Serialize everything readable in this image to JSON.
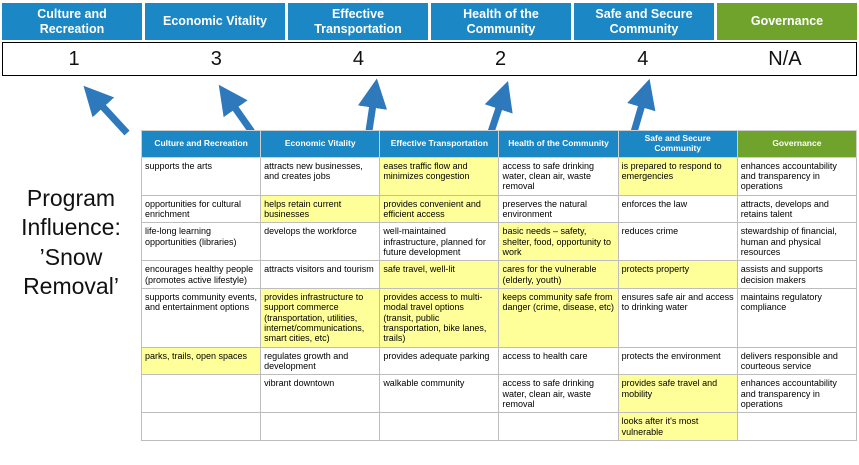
{
  "program_label": "Program Influence: ’Snow Removal’",
  "colors": {
    "header_blue": "#1b87c5",
    "header_green": "#6fa32b",
    "highlight_yellow": "#ffff99",
    "arrow_blue": "#2e79bb"
  },
  "categories": [
    {
      "label": "Culture and Recreation",
      "score": "1",
      "theme": "blue"
    },
    {
      "label": "Economic Vitality",
      "score": "3",
      "theme": "blue"
    },
    {
      "label": "Effective Transportation",
      "score": "4",
      "theme": "blue"
    },
    {
      "label": "Health of the Community",
      "score": "2",
      "theme": "blue"
    },
    {
      "label": "Safe and Secure Community",
      "score": "4",
      "theme": "blue"
    },
    {
      "label": "Governance",
      "score": "N/A",
      "theme": "green"
    }
  ],
  "table": {
    "rows": [
      [
        {
          "text": "supports the arts",
          "hl": false
        },
        {
          "text": "attracts new businesses, and creates jobs",
          "hl": false
        },
        {
          "text": "eases traffic flow and minimizes congestion",
          "hl": true
        },
        {
          "text": "access to safe drinking water, clean air, waste removal",
          "hl": false
        },
        {
          "text": "is prepared to respond to emergencies",
          "hl": true
        },
        {
          "text": "enhances accountability and transparency in operations",
          "hl": false
        }
      ],
      [
        {
          "text": "opportunities for cultural enrichment",
          "hl": false
        },
        {
          "text": "helps retain current businesses",
          "hl": true
        },
        {
          "text": "provides convenient and efficient access",
          "hl": true
        },
        {
          "text": "preserves the natural environment",
          "hl": false
        },
        {
          "text": "enforces the law",
          "hl": false
        },
        {
          "text": "attracts, develops and retains talent",
          "hl": false
        }
      ],
      [
        {
          "text": "life-long learning opportunities (libraries)",
          "hl": false
        },
        {
          "text": "develops the workforce",
          "hl": false
        },
        {
          "text": "well-maintained infrastructure, planned for future development",
          "hl": false
        },
        {
          "text": "basic needs – safety, shelter, food, opportunity to work",
          "hl": true
        },
        {
          "text": "reduces crime",
          "hl": false
        },
        {
          "text": "stewardship of financial, human and physical resources",
          "hl": false
        }
      ],
      [
        {
          "text": "encourages healthy people (promotes active lifestyle)",
          "hl": false
        },
        {
          "text": "attracts visitors and tourism",
          "hl": false
        },
        {
          "text": "safe travel, well-lit",
          "hl": true
        },
        {
          "text": "cares for the vulnerable (elderly, youth)",
          "hl": true
        },
        {
          "text": "protects property",
          "hl": true
        },
        {
          "text": "assists and supports decision makers",
          "hl": false
        }
      ],
      [
        {
          "text": "supports community events, and entertainment options",
          "hl": false
        },
        {
          "text": "provides infrastructure to support commerce (transportation, utilities, internet/communications, smart cities, etc)",
          "hl": true
        },
        {
          "text": "provides access to multi-modal travel options (transit, public transportation, bike lanes, trails)",
          "hl": true
        },
        {
          "text": "keeps community safe from danger (crime, disease, etc)",
          "hl": true
        },
        {
          "text": "ensures safe air and access to drinking water",
          "hl": false
        },
        {
          "text": "maintains regulatory compliance",
          "hl": false
        }
      ],
      [
        {
          "text": "parks, trails, open spaces",
          "hl": true
        },
        {
          "text": "regulates growth and development",
          "hl": false
        },
        {
          "text": "provides adequate parking",
          "hl": false
        },
        {
          "text": "access to health care",
          "hl": false
        },
        {
          "text": "protects the environment",
          "hl": false
        },
        {
          "text": "delivers responsible and courteous service",
          "hl": false
        }
      ],
      [
        {
          "text": "",
          "hl": false
        },
        {
          "text": "vibrant downtown",
          "hl": false
        },
        {
          "text": "walkable community",
          "hl": false
        },
        {
          "text": "access to safe drinking water, clean air, waste removal",
          "hl": false
        },
        {
          "text": "provides safe travel and mobility",
          "hl": true
        },
        {
          "text": "enhances accountability and transparency in operations",
          "hl": false
        }
      ],
      [
        {
          "text": "",
          "hl": false
        },
        {
          "text": "",
          "hl": false
        },
        {
          "text": "",
          "hl": false
        },
        {
          "text": "",
          "hl": false
        },
        {
          "text": "looks after it's most vulnerable",
          "hl": true
        },
        {
          "text": "",
          "hl": false
        }
      ]
    ]
  }
}
